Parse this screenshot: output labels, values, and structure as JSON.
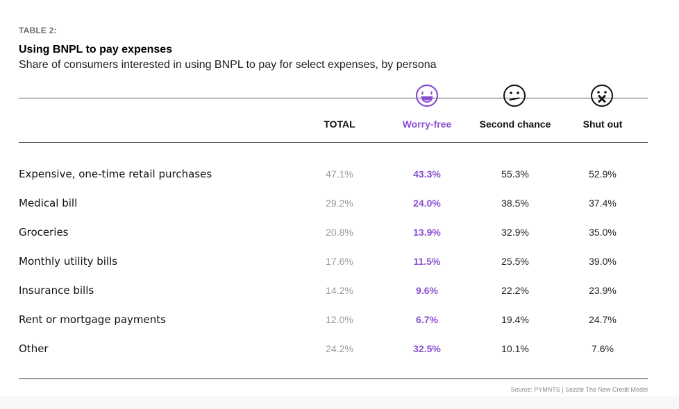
{
  "table_label": "TABLE 2:",
  "title": "Using BNPL to pay expenses",
  "subtitle": "Share of consumers interested in using BNPL to pay for select expenses, by persona",
  "colors": {
    "accent": "#8a4fd0",
    "total_text": "#9a9a9a",
    "text": "#111111",
    "rule": "#555555"
  },
  "icons": {
    "worry_free": "smiling-face-icon",
    "second_chance": "neutral-face-icon",
    "shut_out": "x-mouth-face-icon"
  },
  "source": "Source: PYMNTS | Sezzle    The New Credit Model",
  "chart_data": {
    "type": "table",
    "columns": [
      "TOTAL",
      "Worry-free",
      "Second chance",
      "Shut out"
    ],
    "rows": [
      {
        "label": "Expensive, one-time retail purchases",
        "values": [
          "47.1%",
          "43.3%",
          "55.3%",
          "52.9%"
        ]
      },
      {
        "label": "Medical bill",
        "values": [
          "29.2%",
          "24.0%",
          "38.5%",
          "37.4%"
        ]
      },
      {
        "label": "Groceries",
        "values": [
          "20.8%",
          "13.9%",
          "32.9%",
          "35.0%"
        ]
      },
      {
        "label": "Monthly utility bills",
        "values": [
          "17.6%",
          "11.5%",
          "25.5%",
          "39.0%"
        ]
      },
      {
        "label": "Insurance bills",
        "values": [
          "14.2%",
          "9.6%",
          "22.2%",
          "23.9%"
        ]
      },
      {
        "label": "Rent or mortgage payments",
        "values": [
          "12.0%",
          "6.7%",
          "19.4%",
          "24.7%"
        ]
      },
      {
        "label": "Other",
        "values": [
          "24.2%",
          "32.5%",
          "10.1%",
          "7.6%"
        ]
      }
    ]
  }
}
